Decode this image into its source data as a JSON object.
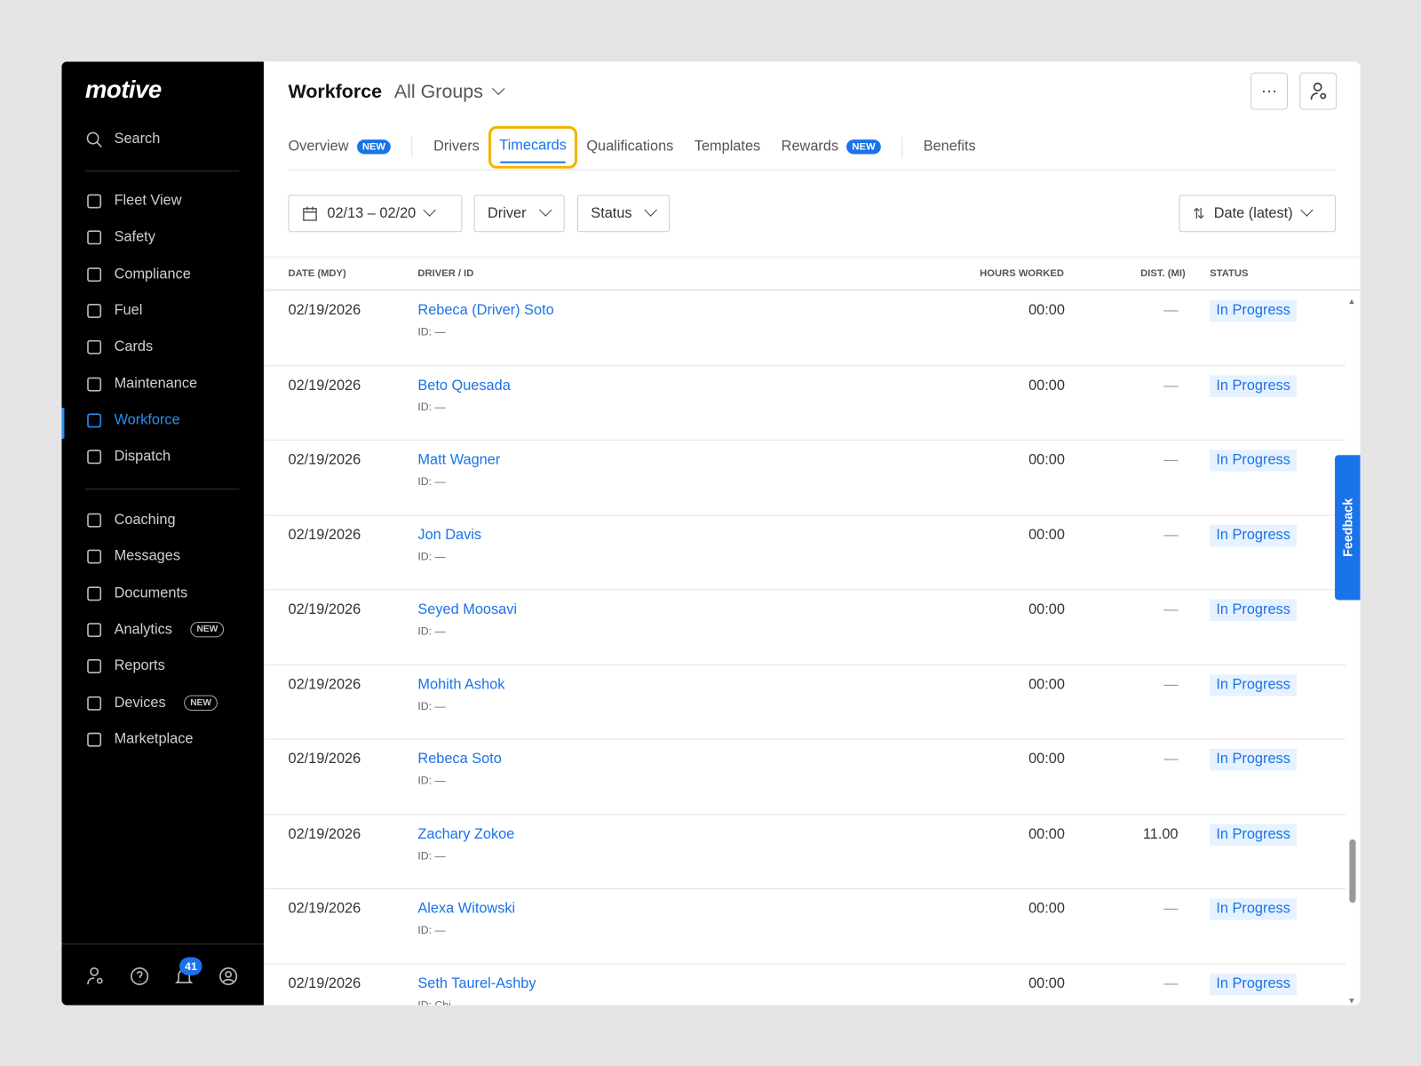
{
  "brand": "motive",
  "sidebar": {
    "search": "Search",
    "items": [
      {
        "label": "Fleet View",
        "icon": "map-icon"
      },
      {
        "label": "Safety",
        "icon": "shield-icon"
      },
      {
        "label": "Compliance",
        "icon": "compliance-icon"
      },
      {
        "label": "Fuel",
        "icon": "fuel-icon"
      },
      {
        "label": "Cards",
        "icon": "card-icon"
      },
      {
        "label": "Maintenance",
        "icon": "wrench-icon"
      },
      {
        "label": "Workforce",
        "icon": "person-icon",
        "active": true
      },
      {
        "label": "Dispatch",
        "icon": "dispatch-icon"
      }
    ],
    "items2": [
      {
        "label": "Coaching",
        "icon": "coaching-icon"
      },
      {
        "label": "Messages",
        "icon": "messages-icon"
      },
      {
        "label": "Documents",
        "icon": "document-icon"
      },
      {
        "label": "Analytics",
        "icon": "analytics-icon",
        "badge": "NEW"
      },
      {
        "label": "Reports",
        "icon": "reports-icon"
      },
      {
        "label": "Devices",
        "icon": "devices-icon",
        "badge": "NEW"
      },
      {
        "label": "Marketplace",
        "icon": "bag-icon"
      }
    ],
    "notifications": "41"
  },
  "header": {
    "title": "Workforce",
    "group": "All Groups",
    "more": "···"
  },
  "tabs": [
    {
      "label": "Overview",
      "badge": "NEW"
    },
    {
      "label": "Drivers"
    },
    {
      "label": "Timecards",
      "active": true
    },
    {
      "label": "Qualifications"
    },
    {
      "label": "Templates"
    },
    {
      "label": "Rewards",
      "badge": "NEW"
    },
    {
      "label": "Benefits"
    }
  ],
  "filters": {
    "date": "02/13 – 02/20",
    "driver": "Driver",
    "status": "Status",
    "sort": "Date (latest)"
  },
  "table": {
    "columns": [
      "DATE (MDY)",
      "DRIVER / ID",
      "HOURS WORKED",
      "DIST. (MI)",
      "STATUS"
    ],
    "rows": [
      [
        "02/19/2026",
        "Rebeca (Driver) Soto",
        "ID: —",
        "00:00",
        "—",
        "In Progress"
      ],
      [
        "02/19/2026",
        "Beto Quesada",
        "ID: —",
        "00:00",
        "—",
        "In Progress"
      ],
      [
        "02/19/2026",
        "Matt Wagner",
        "ID: —",
        "00:00",
        "—",
        "In Progress"
      ],
      [
        "02/19/2026",
        "Jon Davis",
        "ID: —",
        "00:00",
        "—",
        "In Progress"
      ],
      [
        "02/19/2026",
        "Seyed Moosavi",
        "ID: —",
        "00:00",
        "—",
        "In Progress"
      ],
      [
        "02/19/2026",
        "Mohith Ashok",
        "ID: —",
        "00:00",
        "—",
        "In Progress"
      ],
      [
        "02/19/2026",
        "Rebeca Soto",
        "ID: —",
        "00:00",
        "—",
        "In Progress"
      ],
      [
        "02/19/2026",
        "Zachary Zokoe",
        "ID: —",
        "00:00",
        "11.00",
        "In Progress"
      ],
      [
        "02/19/2026",
        "Alexa Witowski",
        "ID: —",
        "00:00",
        "—",
        "In Progress"
      ],
      [
        "02/19/2026",
        "Seth Taurel-Ashby",
        "ID: Chi",
        "00:00",
        "—",
        "In Progress"
      ]
    ]
  },
  "feedback": "Feedback"
}
